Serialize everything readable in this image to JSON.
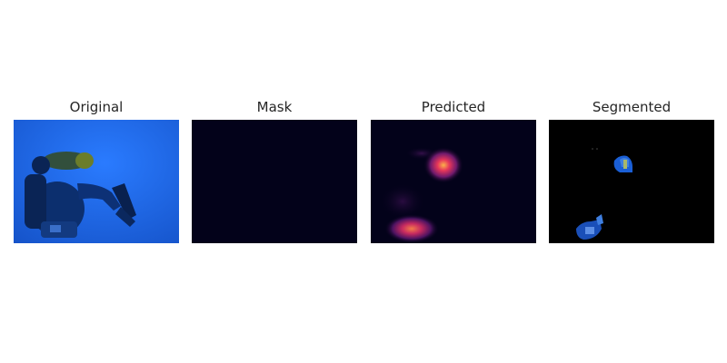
{
  "figure": {
    "panels": [
      {
        "title": "Original"
      },
      {
        "title": "Mask"
      },
      {
        "title": "Predicted"
      },
      {
        "title": "Segmented"
      }
    ]
  },
  "colors": {
    "background": "#ffffff",
    "title_text": "#262626",
    "water_blue": "#1b63e6",
    "mask_fill": "#03021a",
    "heatmap_hot": "#f9a94b",
    "segment_fill": "#000000"
  }
}
